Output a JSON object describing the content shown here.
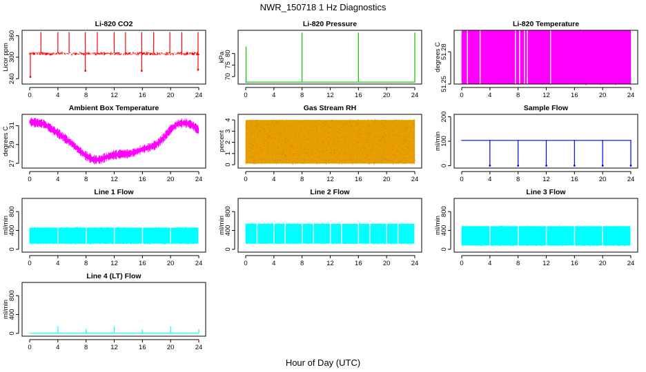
{
  "main_title": "NWR_150718  1 Hz Diagnostics",
  "x_axis_label": "Hour of Day (UTC)",
  "chart_data": [
    {
      "type": "line",
      "title": "Li-820 CO2",
      "ylabel": "Licor ppm",
      "color": "#ff0000",
      "xlim": [
        0,
        24
      ],
      "ylim": [
        225,
        375
      ],
      "x_ticks": [
        0,
        4,
        8,
        12,
        16,
        20,
        24
      ],
      "y_ticks": [
        "240",
        "300",
        "360"
      ],
      "y_tick_values": [
        240,
        300,
        360
      ],
      "baseline": 311,
      "noise": 4,
      "spikes": [
        {
          "x": 1.6,
          "y": 370
        },
        {
          "x": 4.0,
          "y": 370
        },
        {
          "x": 5.6,
          "y": 370
        },
        {
          "x": 7.9,
          "y": 370
        },
        {
          "x": 9.6,
          "y": 370
        },
        {
          "x": 12.0,
          "y": 370
        },
        {
          "x": 13.6,
          "y": 370
        },
        {
          "x": 15.9,
          "y": 370
        },
        {
          "x": 17.6,
          "y": 370
        },
        {
          "x": 19.9,
          "y": 370
        },
        {
          "x": 21.6,
          "y": 370
        },
        {
          "x": 23.9,
          "y": 370
        }
      ],
      "dips": [
        {
          "x": 0.1,
          "y": 245
        },
        {
          "x": 7.9,
          "y": 262
        },
        {
          "x": 15.9,
          "y": 262
        },
        {
          "x": 23.9,
          "y": 265
        }
      ]
    },
    {
      "type": "line",
      "title": "Li-820 Pressure",
      "ylabel": "kPa",
      "color": "#00c000",
      "xlim": [
        0,
        24
      ],
      "ylim": [
        66.8,
        90
      ],
      "x_ticks": [
        0,
        4,
        8,
        12,
        16,
        20,
        24
      ],
      "y_ticks": [
        "70",
        "75",
        "80"
      ],
      "y_tick_values": [
        70,
        75,
        80
      ],
      "baseline": 67.8,
      "spikes": [
        {
          "x": 0.05,
          "y": 83
        },
        {
          "x": 8.0,
          "y": 89
        },
        {
          "x": 16.0,
          "y": 89
        },
        {
          "x": 24.0,
          "y": 89
        }
      ]
    },
    {
      "type": "area",
      "title": "Li-820 Temperature",
      "ylabel": "degrees C",
      "color": "#ff00ff",
      "xlim": [
        0,
        24
      ],
      "ylim": [
        51.25,
        51.3
      ],
      "x_ticks": [
        0,
        4,
        8,
        12,
        16,
        20,
        24
      ],
      "y_ticks": [
        "51.25",
        "51.28"
      ],
      "y_tick_values": [
        51.25,
        51.28
      ],
      "band": [
        51.25,
        51.3
      ],
      "gaps": [
        0.8,
        2.6,
        7.6,
        8.2,
        8.9,
        9.3,
        12.6
      ]
    },
    {
      "type": "line",
      "title": "Ambient Box Temperature",
      "ylabel": "degrees C",
      "color": "#ff00ff",
      "xlim": [
        0,
        24
      ],
      "ylim": [
        26.5,
        32.2
      ],
      "x_ticks": [
        0,
        4,
        8,
        12,
        16,
        20,
        24
      ],
      "y_ticks": [
        "27",
        "29",
        "31"
      ],
      "y_tick_values": [
        27,
        29,
        31
      ],
      "x": [
        0,
        2,
        4,
        6,
        7,
        8,
        9,
        10,
        11,
        12,
        13,
        14,
        15,
        16,
        17,
        18,
        19,
        20,
        21,
        22,
        23,
        24
      ],
      "y": [
        31.4,
        31.2,
        30.2,
        29.1,
        28.4,
        27.8,
        27.4,
        27.4,
        27.7,
        27.9,
        28.0,
        28.0,
        28.2,
        28.5,
        28.7,
        29.0,
        29.7,
        30.6,
        31.2,
        31.3,
        31.1,
        30.5
      ],
      "band_half_width": 0.35
    },
    {
      "type": "area",
      "title": "Gas Stream RH",
      "ylabel": "percent",
      "color": "#e69f00",
      "xlim": [
        0,
        24
      ],
      "ylim": [
        -0.3,
        4.5
      ],
      "x_ticks": [
        0,
        4,
        8,
        12,
        16,
        20,
        24
      ],
      "y_ticks": [
        "0",
        "1",
        "2",
        "3",
        "4"
      ],
      "y_tick_values": [
        0,
        1,
        2,
        3,
        4
      ],
      "band": [
        0.1,
        4.0
      ]
    },
    {
      "type": "line",
      "title": "Sample Flow",
      "ylabel": "ml/min",
      "color": "#0000ff",
      "xlim": [
        0,
        24
      ],
      "ylim": [
        -10,
        210
      ],
      "x_ticks": [
        0,
        4,
        8,
        12,
        16,
        20,
        24
      ],
      "y_ticks": [
        "0",
        "100",
        "200"
      ],
      "y_tick_values": [
        0,
        100,
        200
      ],
      "baseline": 105,
      "dips": [
        {
          "x": 4.0,
          "y": 0
        },
        {
          "x": 8.0,
          "y": 0
        },
        {
          "x": 12.0,
          "y": 0
        },
        {
          "x": 16.0,
          "y": 0
        },
        {
          "x": 20.0,
          "y": 0
        },
        {
          "x": 24.0,
          "y": 0
        }
      ]
    },
    {
      "type": "area",
      "title": "Line 1 Flow",
      "ylabel": "ml/min",
      "color": "#00ffff",
      "xlim": [
        0,
        24
      ],
      "ylim": [
        -60,
        1080
      ],
      "x_ticks": [
        0,
        4,
        8,
        12,
        16,
        20,
        24
      ],
      "y_ticks": [
        "0",
        "400",
        "800"
      ],
      "y_tick_values": [
        0,
        400,
        800
      ],
      "band": [
        120,
        460
      ],
      "gaps": [
        4.0,
        8.0,
        12.0,
        16.0,
        20.0,
        24.0
      ]
    },
    {
      "type": "area",
      "title": "Line 2 Flow",
      "ylabel": "ml/min",
      "color": "#00ffff",
      "xlim": [
        0,
        24
      ],
      "ylim": [
        -60,
        1080
      ],
      "x_ticks": [
        0,
        4,
        8,
        12,
        16,
        20,
        24
      ],
      "y_ticks": [
        "0",
        "400",
        "800"
      ],
      "y_tick_values": [
        0,
        400,
        800
      ],
      "band": [
        120,
        540
      ],
      "gaps": [
        1.6,
        4.0,
        5.6,
        8.0,
        9.6,
        12.0,
        13.6,
        16.0,
        17.6,
        20.0,
        21.6,
        24.0
      ]
    },
    {
      "type": "area",
      "title": "Line 3 Flow",
      "ylabel": "ml/min",
      "color": "#00ffff",
      "xlim": [
        0,
        24
      ],
      "ylim": [
        -60,
        1080
      ],
      "x_ticks": [
        0,
        4,
        8,
        12,
        16,
        20,
        24
      ],
      "y_ticks": [
        "0",
        "400",
        "800"
      ],
      "y_tick_values": [
        0,
        400,
        800
      ],
      "band": [
        80,
        490
      ],
      "gaps": [
        4.0,
        8.0,
        12.0,
        16.0,
        20.0,
        24.0
      ]
    },
    {
      "type": "line",
      "title": "Line 4 (LT) Flow",
      "ylabel": "ml/min",
      "color": "#00ffff",
      "xlim": [
        0,
        24
      ],
      "ylim": [
        -60,
        1080
      ],
      "x_ticks": [
        0,
        4,
        8,
        12,
        16,
        20,
        24
      ],
      "y_ticks": [
        "0",
        "400",
        "800"
      ],
      "y_tick_values": [
        0,
        400,
        800
      ],
      "baseline": 10,
      "spikes": [
        {
          "x": 4.0,
          "y": 150
        },
        {
          "x": 8.0,
          "y": 90
        },
        {
          "x": 12.0,
          "y": 140
        },
        {
          "x": 16.0,
          "y": 80
        },
        {
          "x": 20.0,
          "y": 150
        },
        {
          "x": 24.0,
          "y": 90
        }
      ]
    }
  ]
}
